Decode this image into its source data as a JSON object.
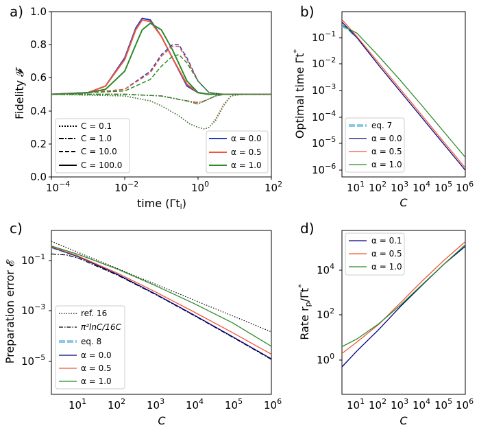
{
  "panels": {
    "a": {
      "letter": "a)",
      "ylabel": "Fidelity 𝓕",
      "xlabel": "time (Γt",
      "xlabel_sub": "l",
      "xlabel_end": ")",
      "xticks": [
        "10",
        "10",
        "10",
        "10"
      ],
      "xtick_exps": [
        "−4",
        "−2",
        "0",
        "2"
      ],
      "yticks": [
        "0.0",
        "0.2",
        "0.4",
        "0.6",
        "0.8",
        "1.0"
      ]
    },
    "b": {
      "letter": "b)",
      "ylabel": "Optimal time Γt",
      "ylabel_sup": "*",
      "xlabel": "C"
    },
    "c": {
      "letter": "c)",
      "ylabel": "Preparation error 𝓔",
      "xlabel": "C"
    },
    "d": {
      "letter": "d)",
      "ylabel": "Rate r",
      "ylabel_sub": "p",
      "ylabel_end": "/Γt",
      "ylabel_sup": "*",
      "xlabel": "C"
    }
  },
  "legends": {
    "a_style": [
      "C = 0.1",
      "C = 1.0",
      "C = 10.0",
      "C = 100.0"
    ],
    "a_alpha": [
      "α = 0.0",
      "α = 0.5",
      "α = 1.0"
    ],
    "b": [
      "eq. 7",
      "α = 0.0",
      "α = 0.5",
      "α = 1.0"
    ],
    "c": [
      "ref. 16",
      "π²lnC/16C",
      "eq. 8",
      "α = 0.0",
      "α = 0.5",
      "α = 1.0"
    ],
    "d": [
      "α = 0.1",
      "α = 0.5",
      "α = 1.0"
    ]
  },
  "log_ticks": {
    "c_x": [
      "1",
      "2",
      "3",
      "4",
      "5",
      "6"
    ],
    "b_y": [
      "−1",
      "−2",
      "−3",
      "−4",
      "−5",
      "−6"
    ],
    "c_y": [
      "−1",
      "−3",
      "−5"
    ],
    "d_y": [
      "4",
      "2",
      "0"
    ]
  },
  "colors": {
    "blue": "#1f3fbf",
    "navy": "#00007f",
    "red": "#f0563a",
    "green": "#2a8a2a",
    "lightblue": "#8ecae6",
    "black": "#000000"
  },
  "chart_data": [
    {
      "panel": "a",
      "type": "line",
      "title": "",
      "xlabel": "time (Γt_l)",
      "ylabel": "Fidelity F",
      "xscale": "log",
      "xlim": [
        0.0001,
        100
      ],
      "ylim": [
        0,
        1
      ],
      "series": [
        {
          "name": "C=100 α=0.0",
          "style": "solid",
          "color": "blue",
          "x": [
            0.0001,
            0.001,
            0.003,
            0.01,
            0.02,
            0.03,
            0.05,
            0.1,
            0.2,
            0.5,
            1,
            2,
            5,
            100
          ],
          "y": [
            0.5,
            0.51,
            0.55,
            0.72,
            0.9,
            0.96,
            0.95,
            0.85,
            0.72,
            0.55,
            0.51,
            0.5,
            0.5,
            0.5
          ]
        },
        {
          "name": "C=100 α=0.5",
          "style": "solid",
          "color": "red",
          "x": [
            0.0001,
            0.001,
            0.003,
            0.01,
            0.02,
            0.03,
            0.05,
            0.1,
            0.2,
            0.5,
            1,
            2,
            5,
            100
          ],
          "y": [
            0.5,
            0.51,
            0.55,
            0.71,
            0.89,
            0.95,
            0.94,
            0.85,
            0.72,
            0.56,
            0.51,
            0.5,
            0.5,
            0.5
          ]
        },
        {
          "name": "C=100 α=1.0",
          "style": "solid",
          "color": "green",
          "x": [
            0.0001,
            0.001,
            0.003,
            0.01,
            0.02,
            0.03,
            0.05,
            0.1,
            0.2,
            0.5,
            1,
            2,
            5,
            100
          ],
          "y": [
            0.5,
            0.51,
            0.53,
            0.64,
            0.8,
            0.89,
            0.93,
            0.89,
            0.77,
            0.58,
            0.51,
            0.5,
            0.5,
            0.5
          ]
        },
        {
          "name": "C=10 α=0.0",
          "style": "dash",
          "color": "blue",
          "x": [
            0.0001,
            0.001,
            0.01,
            0.05,
            0.1,
            0.2,
            0.3,
            0.5,
            1,
            2,
            5,
            100
          ],
          "y": [
            0.5,
            0.51,
            0.53,
            0.64,
            0.74,
            0.8,
            0.8,
            0.72,
            0.58,
            0.51,
            0.5,
            0.5
          ]
        },
        {
          "name": "C=10 α=0.5",
          "style": "dash",
          "color": "red",
          "x": [
            0.0001,
            0.001,
            0.01,
            0.05,
            0.1,
            0.2,
            0.3,
            0.5,
            1,
            2,
            5,
            100
          ],
          "y": [
            0.5,
            0.51,
            0.53,
            0.63,
            0.73,
            0.79,
            0.79,
            0.71,
            0.58,
            0.51,
            0.5,
            0.5
          ]
        },
        {
          "name": "C=10 α=1.0",
          "style": "dash",
          "color": "green",
          "x": [
            0.0001,
            0.001,
            0.01,
            0.05,
            0.1,
            0.2,
            0.3,
            0.5,
            1,
            2,
            5,
            100
          ],
          "y": [
            0.5,
            0.51,
            0.52,
            0.59,
            0.67,
            0.73,
            0.74,
            0.69,
            0.58,
            0.51,
            0.5,
            0.5
          ]
        },
        {
          "name": "C=1 α=0.0",
          "style": "dashdot",
          "color": "blue",
          "x": [
            0.0001,
            0.01,
            0.1,
            0.5,
            1,
            1.5,
            3,
            5,
            10,
            100
          ],
          "y": [
            0.5,
            0.5,
            0.49,
            0.46,
            0.45,
            0.46,
            0.49,
            0.5,
            0.5,
            0.5
          ]
        },
        {
          "name": "C=1 α=0.5",
          "style": "dashdot",
          "color": "red",
          "x": [
            0.0001,
            0.01,
            0.1,
            0.5,
            1,
            1.5,
            3,
            5,
            10,
            100
          ],
          "y": [
            0.5,
            0.5,
            0.49,
            0.46,
            0.45,
            0.46,
            0.49,
            0.5,
            0.5,
            0.5
          ]
        },
        {
          "name": "C=1 α=1.0",
          "style": "dashdot",
          "color": "green",
          "x": [
            0.0001,
            0.01,
            0.1,
            0.5,
            1,
            1.5,
            3,
            5,
            10,
            100
          ],
          "y": [
            0.5,
            0.5,
            0.49,
            0.46,
            0.44,
            0.46,
            0.49,
            0.5,
            0.5,
            0.5
          ]
        },
        {
          "name": "C=0.1 α=0.0",
          "style": "dot",
          "color": "blue",
          "x": [
            0.0001,
            0.01,
            0.05,
            0.1,
            0.3,
            0.6,
            1,
            1.5,
            2,
            3,
            5,
            8,
            15,
            100
          ],
          "y": [
            0.5,
            0.49,
            0.46,
            0.43,
            0.37,
            0.32,
            0.3,
            0.29,
            0.3,
            0.35,
            0.44,
            0.49,
            0.5,
            0.5
          ]
        },
        {
          "name": "C=0.1 α=0.5",
          "style": "dot",
          "color": "red",
          "x": [
            0.0001,
            0.01,
            0.05,
            0.1,
            0.3,
            0.6,
            1,
            1.5,
            2,
            3,
            5,
            8,
            15,
            100
          ],
          "y": [
            0.5,
            0.49,
            0.46,
            0.43,
            0.37,
            0.32,
            0.3,
            0.29,
            0.3,
            0.35,
            0.44,
            0.49,
            0.5,
            0.5
          ]
        },
        {
          "name": "C=0.1 α=1.0",
          "style": "dot",
          "color": "green",
          "x": [
            0.0001,
            0.01,
            0.05,
            0.1,
            0.3,
            0.6,
            1,
            1.5,
            2,
            3,
            5,
            8,
            15,
            100
          ],
          "y": [
            0.5,
            0.49,
            0.46,
            0.43,
            0.37,
            0.32,
            0.3,
            0.29,
            0.3,
            0.34,
            0.43,
            0.49,
            0.5,
            0.5
          ]
        }
      ]
    },
    {
      "panel": "b",
      "type": "line",
      "xlabel": "C",
      "ylabel": "Optimal time Γt*",
      "xscale": "log",
      "yscale": "log",
      "xlim": [
        2,
        1000000
      ],
      "ylim": [
        5e-07,
        1
      ],
      "series": [
        {
          "name": "eq. 7",
          "style": "thickdash",
          "color": "lightblue",
          "x": [
            2,
            4,
            8
          ],
          "y": [
            0.28,
            0.22,
            0.12
          ]
        },
        {
          "name": "α = 0.0",
          "color": "navy",
          "x": [
            2,
            10,
            100,
            1000,
            10000,
            100000,
            1000000
          ],
          "y": [
            0.4,
            0.1,
            0.009,
            0.0009,
            9e-05,
            9e-06,
            9e-07
          ]
        },
        {
          "name": "α = 0.5",
          "color": "red",
          "x": [
            2,
            10,
            100,
            1000,
            10000,
            100000,
            1000000
          ],
          "y": [
            0.5,
            0.11,
            0.011,
            0.0011,
            0.00011,
            1.1e-05,
            1.1e-06
          ]
        },
        {
          "name": "α = 1.0",
          "color": "green",
          "x": [
            2,
            10,
            100,
            1000,
            10000,
            100000,
            1000000
          ],
          "y": [
            0.3,
            0.15,
            0.02,
            0.0024,
            0.00026,
            2.7e-05,
            2.8e-06
          ]
        }
      ]
    },
    {
      "panel": "c",
      "type": "line",
      "xlabel": "C",
      "ylabel": "Preparation error E",
      "xscale": "log",
      "yscale": "log",
      "xlim": [
        2,
        1000000
      ],
      "ylim": [
        3e-07,
        2
      ],
      "series": [
        {
          "name": "ref. 16",
          "style": "dot",
          "color": "black",
          "x": [
            2,
            1000000
          ],
          "y": [
            0.7,
            0.00012
          ]
        },
        {
          "name": "π²lnC/16C",
          "style": "dashdot",
          "color": "black",
          "x": [
            2,
            5,
            10,
            100,
            1000,
            10000,
            100000,
            1000000
          ],
          "y": [
            0.21,
            0.19,
            0.14,
            0.028,
            0.0043,
            0.00057,
            7.1e-05,
            8.5e-06
          ]
        },
        {
          "name": "eq. 8",
          "style": "thickdash",
          "color": "lightblue",
          "x": [
            2,
            5,
            10
          ],
          "y": [
            0.4,
            0.25,
            0.16
          ]
        },
        {
          "name": "α = 0.0",
          "color": "navy",
          "x": [
            2,
            10,
            100,
            1000,
            10000,
            100000,
            1000000
          ],
          "y": [
            0.4,
            0.16,
            0.03,
            0.0045,
            0.0006,
            7.5e-05,
            9e-06
          ]
        },
        {
          "name": "α = 0.5",
          "color": "red",
          "x": [
            2,
            10,
            100,
            1000,
            10000,
            100000,
            1000000
          ],
          "y": [
            0.42,
            0.17,
            0.034,
            0.0055,
            0.0008,
            0.00011,
            1.4e-05
          ]
        },
        {
          "name": "α = 1.0",
          "color": "green",
          "x": [
            2,
            10,
            100,
            1000,
            10000,
            100000,
            1000000
          ],
          "y": [
            0.45,
            0.2,
            0.05,
            0.01,
            0.0018,
            0.00028,
            3e-05
          ]
        }
      ]
    },
    {
      "panel": "d",
      "type": "line",
      "xlabel": "C",
      "ylabel": "Rate r_p/Γt*",
      "xscale": "log",
      "yscale": "log",
      "xlim": [
        2,
        1000000
      ],
      "ylim": [
        0.003,
        1000000
      ],
      "series": [
        {
          "name": "α = 0.1",
          "color": "navy",
          "x": [
            2,
            10,
            100,
            1000,
            10000,
            100000,
            1000000
          ],
          "y": [
            0.08,
            0.55,
            7,
            110,
            1400,
            17000,
            150000
          ]
        },
        {
          "name": "α = 0.5",
          "color": "red",
          "x": [
            2,
            10,
            100,
            1000,
            10000,
            100000,
            1000000
          ],
          "y": [
            0.4,
            1.6,
            13,
            170,
            2300,
            27000,
            260000
          ]
        },
        {
          "name": "α = 1.0",
          "color": "green",
          "x": [
            2,
            10,
            100,
            1000,
            10000,
            100000,
            1000000
          ],
          "y": [
            0.9,
            2.3,
            14,
            130,
            1500,
            17000,
            180000
          ]
        }
      ]
    }
  ]
}
